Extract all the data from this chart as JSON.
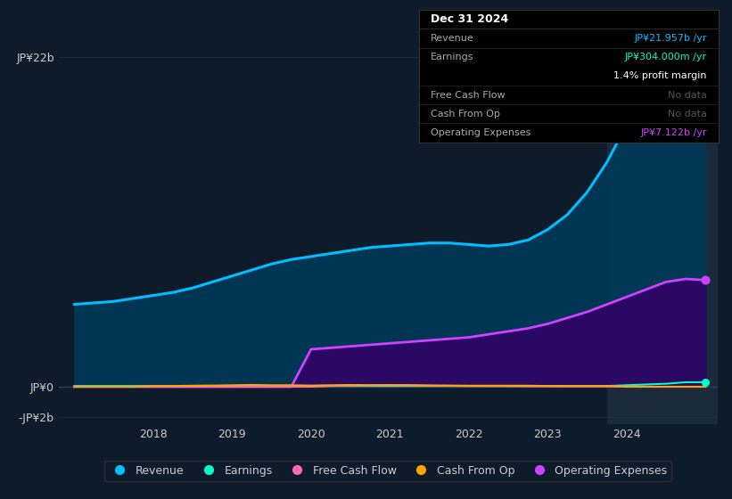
{
  "bg_color": "#0d1b2a",
  "plot_bg_color": "#0d1b2a",
  "grid_color": "#1e3048",
  "text_color": "#cccccc",
  "title_color": "#ffffff",
  "years_x": [
    2017,
    2017.25,
    2017.5,
    2017.75,
    2018,
    2018.25,
    2018.5,
    2018.75,
    2019,
    2019.25,
    2019.5,
    2019.75,
    2020,
    2020.25,
    2020.5,
    2020.75,
    2021,
    2021.25,
    2021.5,
    2021.75,
    2022,
    2022.25,
    2022.5,
    2022.75,
    2023,
    2023.25,
    2023.5,
    2023.75,
    2024,
    2024.25,
    2024.5,
    2024.75,
    2025.0
  ],
  "revenue": [
    5.5,
    5.6,
    5.7,
    5.9,
    6.1,
    6.3,
    6.6,
    7.0,
    7.4,
    7.8,
    8.2,
    8.5,
    8.7,
    8.9,
    9.1,
    9.3,
    9.4,
    9.5,
    9.6,
    9.6,
    9.5,
    9.4,
    9.5,
    9.8,
    10.5,
    11.5,
    13.0,
    15.0,
    17.5,
    19.5,
    21.0,
    22.0,
    22.0
  ],
  "earnings": [
    0.05,
    0.05,
    0.05,
    0.05,
    0.05,
    0.05,
    0.05,
    0.05,
    0.05,
    0.05,
    0.05,
    0.05,
    0.05,
    0.05,
    0.05,
    0.05,
    0.05,
    0.05,
    0.05,
    0.05,
    0.05,
    0.05,
    0.05,
    0.05,
    0.05,
    0.05,
    0.05,
    0.05,
    0.1,
    0.15,
    0.2,
    0.3,
    0.304
  ],
  "free_cash_flow": [
    0.0,
    0.0,
    0.0,
    0.0,
    0.0,
    0.0,
    0.0,
    0.0,
    0.0,
    0.0,
    0.0,
    0.0,
    0.0,
    0.05,
    0.08,
    0.1,
    0.12,
    0.1,
    0.08,
    0.06,
    0.05,
    0.04,
    0.04,
    0.03,
    0.03,
    0.02,
    0.02,
    0.02,
    0.0,
    0.0,
    0.0,
    0.0,
    0.0
  ],
  "cash_from_op": [
    0.0,
    0.0,
    0.0,
    0.0,
    0.05,
    0.05,
    0.07,
    0.08,
    0.1,
    0.12,
    0.1,
    0.1,
    0.08,
    0.1,
    0.12,
    0.1,
    0.1,
    0.1,
    0.08,
    0.08,
    0.07,
    0.07,
    0.07,
    0.07,
    0.05,
    0.05,
    0.05,
    0.05,
    0.0,
    0.0,
    0.0,
    0.0,
    0.0
  ],
  "operating_expenses": [
    0.0,
    0.0,
    0.0,
    0.0,
    0.0,
    0.0,
    0.0,
    0.0,
    0.0,
    0.0,
    0.0,
    0.0,
    2.5,
    2.6,
    2.7,
    2.8,
    2.9,
    3.0,
    3.1,
    3.2,
    3.3,
    3.5,
    3.7,
    3.9,
    4.2,
    4.6,
    5.0,
    5.5,
    6.0,
    6.5,
    7.0,
    7.2,
    7.122
  ],
  "revenue_color": "#00bfff",
  "earnings_color": "#00ffcc",
  "free_cash_flow_color": "#ff69b4",
  "cash_from_op_color": "#ffa500",
  "operating_expenses_color": "#cc44ff",
  "revenue_fill_color": "#003a5c",
  "operating_expenses_fill_color": "#330066",
  "ylim": [
    -2.5,
    23.5
  ],
  "xlim": [
    2016.8,
    2025.15
  ],
  "xtick_labels": [
    "2018",
    "2019",
    "2020",
    "2021",
    "2022",
    "2023",
    "2024"
  ],
  "xtick_positions": [
    2018,
    2019,
    2020,
    2021,
    2022,
    2023,
    2024
  ],
  "ytick_labels": [
    "JP¥22b",
    "JP¥0",
    "-JP¥2b"
  ],
  "ytick_positions": [
    22,
    0,
    -2
  ],
  "tooltip": {
    "title": "Dec 31 2024",
    "rows": [
      {
        "label": "Revenue",
        "value": "JP¥21.957b /yr",
        "value_color": "#00bfff",
        "separator": true
      },
      {
        "label": "Earnings",
        "value": "JP¥304.000m /yr",
        "value_color": "#00ffcc",
        "separator": false
      },
      {
        "label": "",
        "value": "1.4% profit margin",
        "value_color": "#ffffff",
        "separator": true
      },
      {
        "label": "Free Cash Flow",
        "value": "No data",
        "value_color": "#555555",
        "separator": true
      },
      {
        "label": "Cash From Op",
        "value": "No data",
        "value_color": "#555555",
        "separator": true
      },
      {
        "label": "Operating Expenses",
        "value": "JP¥7.122b /yr",
        "value_color": "#cc44ff",
        "separator": true
      }
    ]
  },
  "legend": [
    {
      "label": "Revenue",
      "color": "#00bfff"
    },
    {
      "label": "Earnings",
      "color": "#00ffcc"
    },
    {
      "label": "Free Cash Flow",
      "color": "#ff69b4"
    },
    {
      "label": "Cash From Op",
      "color": "#ffa500"
    },
    {
      "label": "Operating Expenses",
      "color": "#cc44ff"
    }
  ],
  "highlight_x_start": 2023.75,
  "highlight_x_end": 2025.15,
  "highlight_color": "#1a2a3a"
}
